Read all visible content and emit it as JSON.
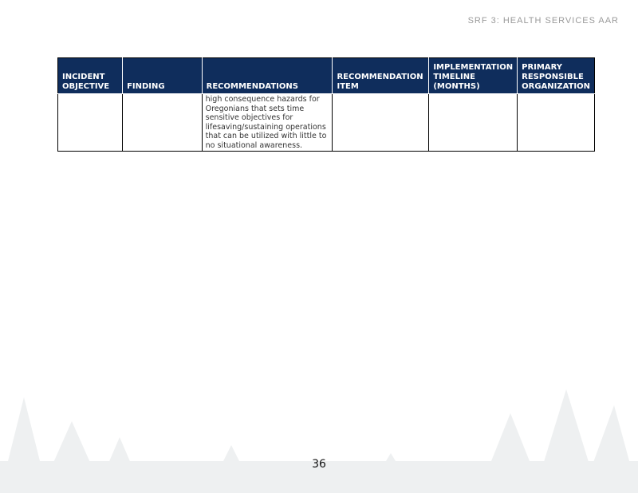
{
  "header": "SRF 3: HEALTH SERVICES AAR",
  "table": {
    "columns": [
      "INCIDENT OBJECTIVE",
      "FINDING",
      "RECOMMENDATIONS",
      "RECOMMENDATION ITEM",
      "IMPLEMENTATION TIMELINE (MONTHS)",
      "PRIMARY RESPONSIBLE ORGANIZATION"
    ],
    "rows": [
      [
        "",
        "",
        "high consequence hazards for Oregonians that sets time sensitive objectives for lifesaving/sustaining operations that can be utilized with little to no situational awareness.",
        "",
        "",
        ""
      ]
    ]
  },
  "page_number": "36"
}
